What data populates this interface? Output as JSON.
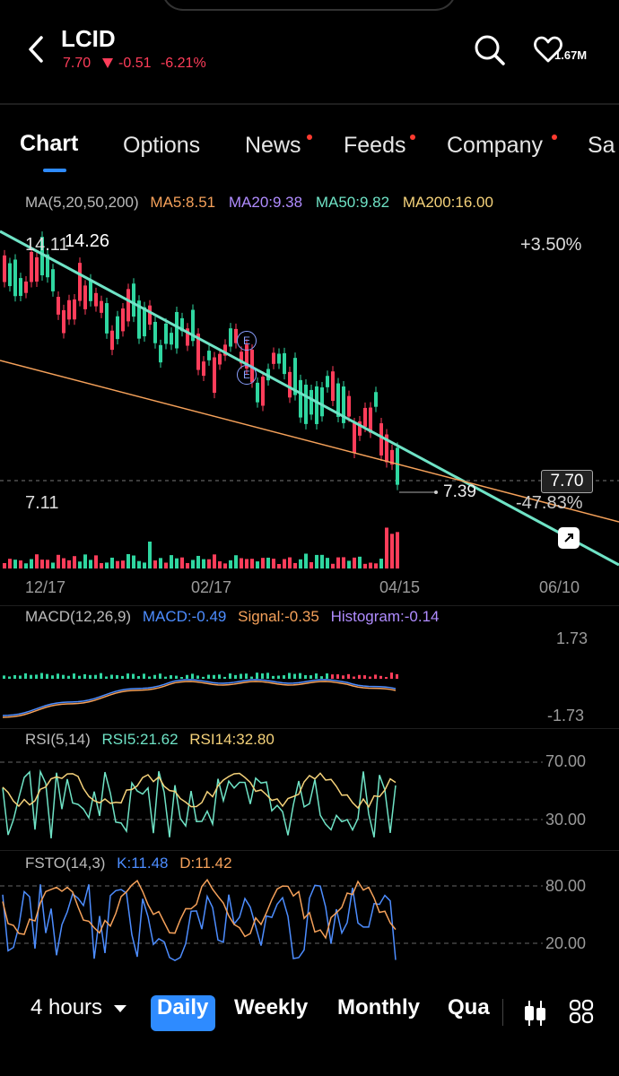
{
  "header": {
    "title": "LCID",
    "price": "7.70",
    "change": "-0.51",
    "change_pct": "-6.21%",
    "followers": "1.67M"
  },
  "tabs": [
    {
      "label": "Chart",
      "active": true,
      "dot": false
    },
    {
      "label": "Options",
      "active": false,
      "dot": false
    },
    {
      "label": "News",
      "active": false,
      "dot": true
    },
    {
      "label": "Feeds",
      "active": false,
      "dot": true
    },
    {
      "label": "Company",
      "active": false,
      "dot": true
    },
    {
      "label": "Sa",
      "active": false,
      "dot": false
    }
  ],
  "ma": {
    "label": "MA(5,20,50,200)",
    "ma5": "MA5:8.51",
    "ma20": "MA20:9.38",
    "ma50": "MA50:9.82",
    "ma200": "MA200:16.00"
  },
  "price_chart": {
    "high_left": "14.11",
    "high_label": "14.26",
    "pct_top": "+3.50%",
    "last_price_tag": "7.70",
    "low_label": "7.39",
    "pct_bottom": "-47.83%",
    "min_label": "7.11",
    "earnings_marker": "E",
    "x_ticks": [
      "12/17",
      "02/17",
      "04/15",
      "06/10"
    ]
  },
  "macd": {
    "label": "MACD(12,26,9)",
    "macd": "MACD:-0.49",
    "signal": "Signal:-0.35",
    "histogram": "Histogram:-0.14",
    "top": "1.73",
    "bottom": "-1.73"
  },
  "rsi": {
    "label": "RSI(5,14)",
    "rsi5": "RSI5:21.62",
    "rsi14": "RSI14:32.80",
    "upper": "70.00",
    "lower": "30.00"
  },
  "fsto": {
    "label": "FSTO(14,3)",
    "k": "K:11.48",
    "d": "D:11.42",
    "upper": "80.00",
    "lower": "20.00"
  },
  "periods": {
    "interval": "4 hours",
    "daily": "Daily",
    "weekly": "Weekly",
    "monthly": "Monthly",
    "quarterly": "Qua"
  },
  "colors": {
    "up": "#2fd6a0",
    "down": "#ff3d5a",
    "ma5": "#f5a15a",
    "ma20": "#b08cff",
    "ma50": "#6fe3c6",
    "ma200": "#f5d27a",
    "accent": "#2e8bff"
  }
}
